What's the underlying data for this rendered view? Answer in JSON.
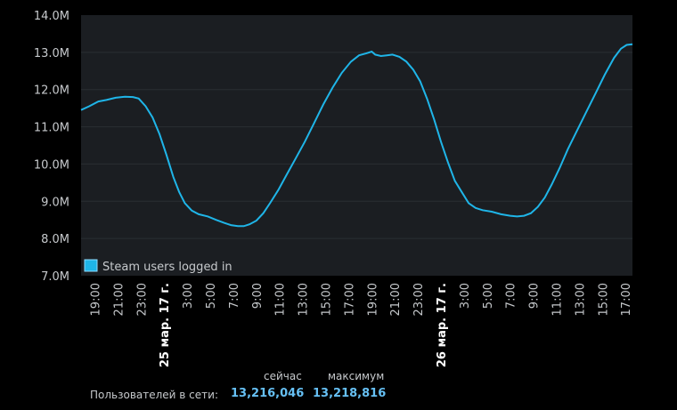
{
  "chart_data": {
    "type": "line",
    "ylim": [
      7000000,
      14000000
    ],
    "yticks": [
      {
        "value": 7000000,
        "label": "7.0M"
      },
      {
        "value": 8000000,
        "label": "8.0M"
      },
      {
        "value": 9000000,
        "label": "9.0M"
      },
      {
        "value": 10000000,
        "label": "10.0M"
      },
      {
        "value": 11000000,
        "label": "11.0M"
      },
      {
        "value": 12000000,
        "label": "12.0M"
      },
      {
        "value": 13000000,
        "label": "13.0M"
      },
      {
        "value": 14000000,
        "label": "14.0M"
      }
    ],
    "xlim": [
      17.8,
      65.6
    ],
    "xticks": [
      {
        "hour": 19,
        "label": "19:00"
      },
      {
        "hour": 21,
        "label": "21:00"
      },
      {
        "hour": 23,
        "label": "23:00"
      },
      {
        "hour": 25,
        "label": "25 мар. 17 г.",
        "bold": true
      },
      {
        "hour": 27,
        "label": "3:00"
      },
      {
        "hour": 29,
        "label": "5:00"
      },
      {
        "hour": 31,
        "label": "7:00"
      },
      {
        "hour": 33,
        "label": "9:00"
      },
      {
        "hour": 35,
        "label": "11:00"
      },
      {
        "hour": 37,
        "label": "13:00"
      },
      {
        "hour": 39,
        "label": "15:00"
      },
      {
        "hour": 41,
        "label": "17:00"
      },
      {
        "hour": 43,
        "label": "19:00"
      },
      {
        "hour": 45,
        "label": "21:00"
      },
      {
        "hour": 47,
        "label": "23:00"
      },
      {
        "hour": 49,
        "label": "26 мар. 17 г.",
        "bold": true
      },
      {
        "hour": 51,
        "label": "3:00"
      },
      {
        "hour": 53,
        "label": "5:00"
      },
      {
        "hour": 55,
        "label": "7:00"
      },
      {
        "hour": 57,
        "label": "9:00"
      },
      {
        "hour": 59,
        "label": "11:00"
      },
      {
        "hour": 61,
        "label": "13:00"
      },
      {
        "hour": 63,
        "label": "15:00"
      },
      {
        "hour": 65,
        "label": "17:00"
      }
    ],
    "series": [
      {
        "name": "Steam users logged in",
        "color": "#1fb5e8",
        "points": [
          [
            17.8,
            11450000
          ],
          [
            18.5,
            11550000
          ],
          [
            19.3,
            11680000
          ],
          [
            20.0,
            11720000
          ],
          [
            20.8,
            11780000
          ],
          [
            21.6,
            11810000
          ],
          [
            22.3,
            11800000
          ],
          [
            22.8,
            11760000
          ],
          [
            23.4,
            11550000
          ],
          [
            24.0,
            11250000
          ],
          [
            24.6,
            10800000
          ],
          [
            25.2,
            10250000
          ],
          [
            25.8,
            9650000
          ],
          [
            26.3,
            9250000
          ],
          [
            26.8,
            8950000
          ],
          [
            27.4,
            8750000
          ],
          [
            28.0,
            8650000
          ],
          [
            28.8,
            8590000
          ],
          [
            29.5,
            8500000
          ],
          [
            30.2,
            8420000
          ],
          [
            30.8,
            8360000
          ],
          [
            31.4,
            8330000
          ],
          [
            31.9,
            8330000
          ],
          [
            32.4,
            8380000
          ],
          [
            33.0,
            8480000
          ],
          [
            33.6,
            8680000
          ],
          [
            34.2,
            8960000
          ],
          [
            34.9,
            9300000
          ],
          [
            35.6,
            9700000
          ],
          [
            36.4,
            10150000
          ],
          [
            37.2,
            10600000
          ],
          [
            38.0,
            11100000
          ],
          [
            38.8,
            11600000
          ],
          [
            39.6,
            12050000
          ],
          [
            40.4,
            12450000
          ],
          [
            41.2,
            12750000
          ],
          [
            41.9,
            12920000
          ],
          [
            42.5,
            12970000
          ],
          [
            43.0,
            13020000
          ],
          [
            43.3,
            12940000
          ],
          [
            43.8,
            12900000
          ],
          [
            44.3,
            12920000
          ],
          [
            44.8,
            12940000
          ],
          [
            45.4,
            12880000
          ],
          [
            46.0,
            12750000
          ],
          [
            46.6,
            12530000
          ],
          [
            47.2,
            12220000
          ],
          [
            47.8,
            11750000
          ],
          [
            48.4,
            11200000
          ],
          [
            49.0,
            10600000
          ],
          [
            49.6,
            10050000
          ],
          [
            50.2,
            9550000
          ],
          [
            50.8,
            9250000
          ],
          [
            51.4,
            8950000
          ],
          [
            52.0,
            8820000
          ],
          [
            52.6,
            8760000
          ],
          [
            53.4,
            8720000
          ],
          [
            54.2,
            8650000
          ],
          [
            55.0,
            8610000
          ],
          [
            55.6,
            8590000
          ],
          [
            56.2,
            8610000
          ],
          [
            56.8,
            8680000
          ],
          [
            57.4,
            8850000
          ],
          [
            58.0,
            9100000
          ],
          [
            58.6,
            9450000
          ],
          [
            59.3,
            9900000
          ],
          [
            60.0,
            10400000
          ],
          [
            60.8,
            10900000
          ],
          [
            61.6,
            11400000
          ],
          [
            62.4,
            11900000
          ],
          [
            63.2,
            12400000
          ],
          [
            64.0,
            12850000
          ],
          [
            64.6,
            13100000
          ],
          [
            65.1,
            13200000
          ],
          [
            65.6,
            13216046
          ]
        ]
      }
    ],
    "grid": true,
    "legend": "bottom-left"
  },
  "stats": {
    "header_now": "сейчас",
    "header_max": "максимум",
    "label": "Пользователей в сети:",
    "now_value": "13,216,046",
    "max_value": "13,218,816"
  }
}
